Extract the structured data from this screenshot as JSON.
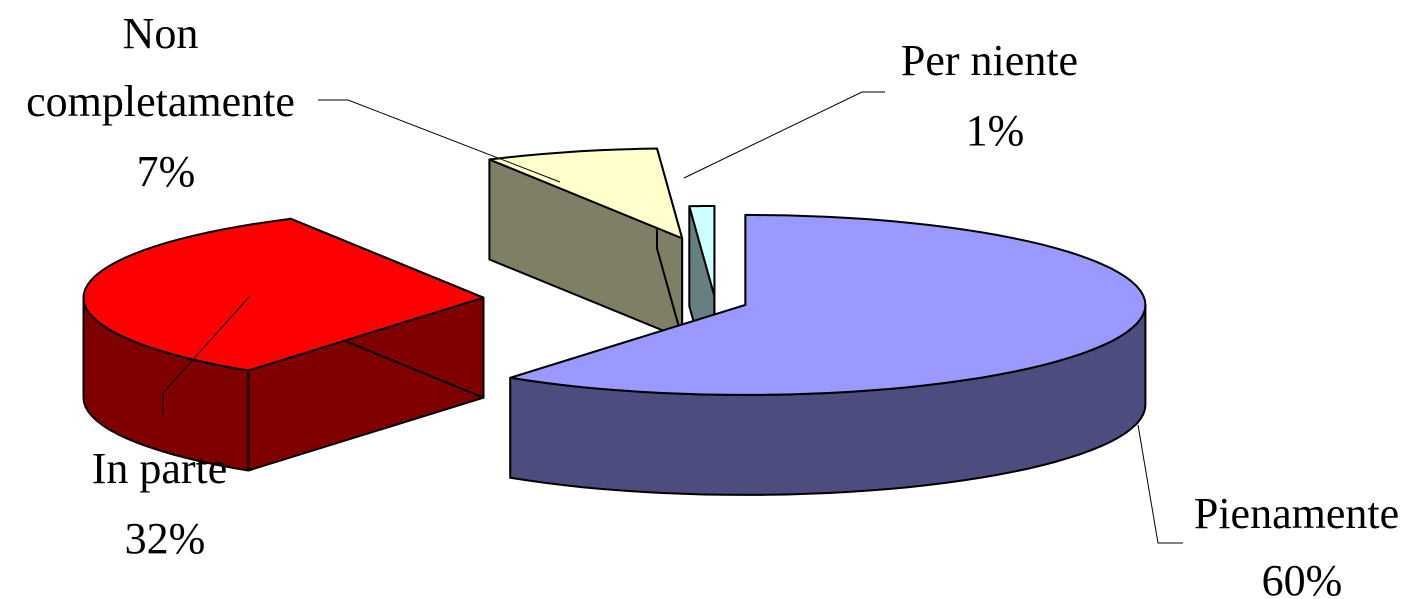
{
  "chart_data": {
    "type": "pie",
    "style": "3d-exploded",
    "title": "",
    "slices": [
      {
        "name": "Pienamente",
        "value": 60,
        "label": "60%",
        "color": "#9999ff",
        "side_color": "#4c4c7f"
      },
      {
        "name": "In parte",
        "value": 32,
        "label": "32%",
        "color": "#ff0000",
        "side_color": "#800000"
      },
      {
        "name": "Non completamente",
        "value": 7,
        "label": "7%",
        "color": "#ffffcc",
        "side_color": "#7f7f66"
      },
      {
        "name": "Per niente",
        "value": 1,
        "label": "1%",
        "color": "#ccffff",
        "side_color": "#668080"
      }
    ],
    "legend": "none",
    "data_labels": "category-and-percent"
  }
}
